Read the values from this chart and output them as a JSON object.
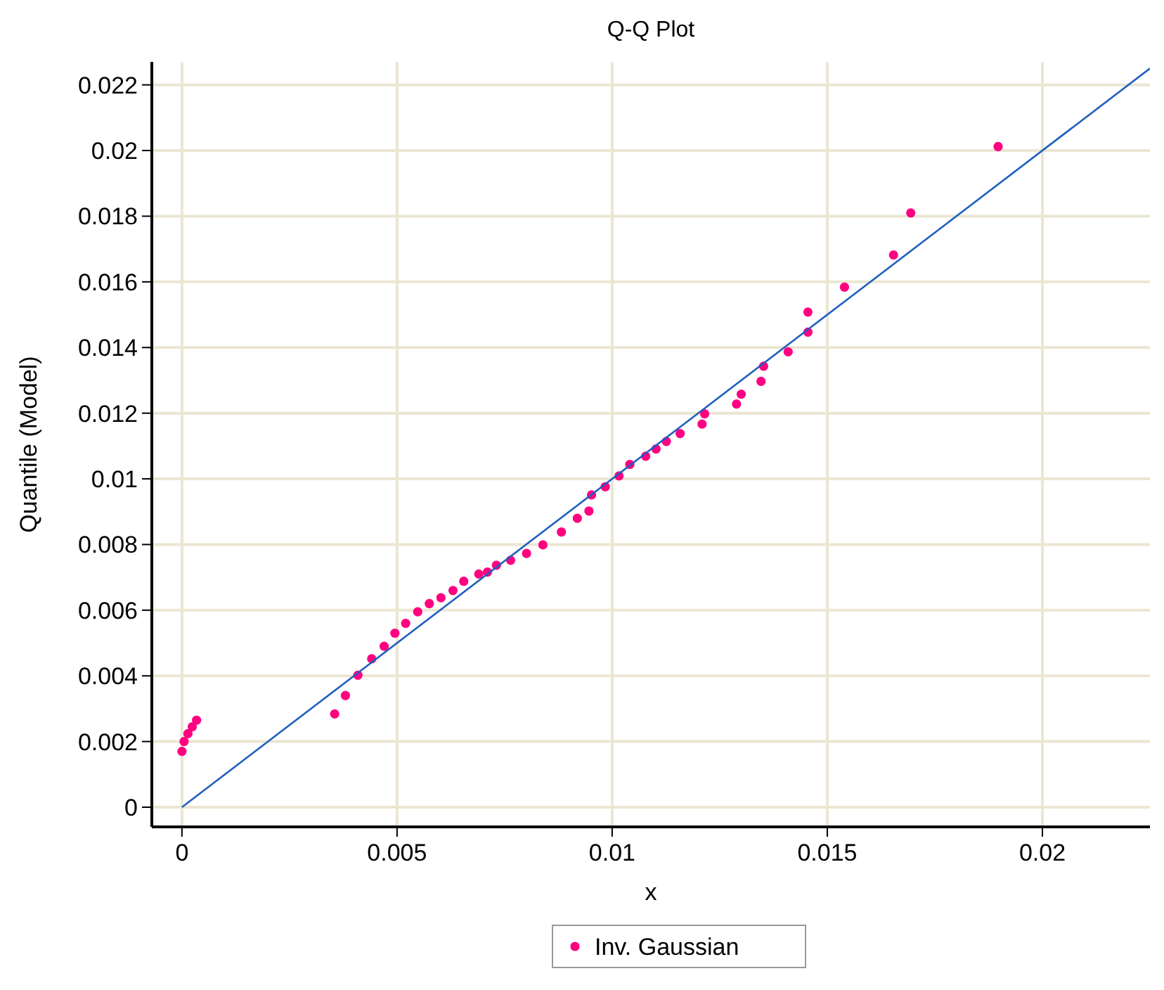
{
  "chart_data": {
    "type": "scatter",
    "title": "Q-Q Plot",
    "xlabel": "x",
    "ylabel": "Quantile (Model)",
    "xlim": [
      -0.0007,
      0.0225
    ],
    "ylim": [
      -0.0006,
      0.0227
    ],
    "xticks": [
      0,
      0.005,
      0.01,
      0.015,
      0.02
    ],
    "yticks": [
      0,
      0.002,
      0.004,
      0.006,
      0.008,
      0.01,
      0.012,
      0.014,
      0.016,
      0.018,
      0.02,
      0.022
    ],
    "grid": true,
    "legend": "bottom",
    "series": [
      {
        "name": "Inv. Gaussian",
        "color": "#ff0080",
        "marker": "circle",
        "x": [
          0,
          5e-05,
          0.00014,
          0.00024,
          0.00034,
          0.00355,
          0.0038,
          0.00409,
          0.00441,
          0.0047,
          0.00495,
          0.0052,
          0.00548,
          0.00575,
          0.00602,
          0.0063,
          0.00655,
          0.0069,
          0.0071,
          0.00731,
          0.00764,
          0.00801,
          0.00839,
          0.00882,
          0.00919,
          0.00946,
          0.00952,
          0.00984,
          0.01016,
          0.01041,
          0.01078,
          0.01102,
          0.01126,
          0.01158,
          0.01209,
          0.01215,
          0.01289,
          0.013,
          0.01346,
          0.01352,
          0.01409,
          0.01455,
          0.01455,
          0.0154,
          0.01654,
          0.01694,
          0.01897
        ],
        "values": [
          0.0017,
          0.002,
          0.00224,
          0.00245,
          0.00265,
          0.00284,
          0.0034,
          0.00402,
          0.00452,
          0.0049,
          0.0053,
          0.0056,
          0.00595,
          0.0062,
          0.00638,
          0.0066,
          0.00688,
          0.0071,
          0.00716,
          0.00737,
          0.00752,
          0.00773,
          0.00799,
          0.00838,
          0.0088,
          0.00902,
          0.00951,
          0.00976,
          0.01009,
          0.01044,
          0.01069,
          0.01091,
          0.01114,
          0.01138,
          0.01167,
          0.01198,
          0.01228,
          0.01258,
          0.01297,
          0.01343,
          0.01387,
          0.01447,
          0.01508,
          0.01584,
          0.01682,
          0.0181,
          0.02012
        ]
      },
      {
        "type": "line",
        "color": "#1f5fbf",
        "x": [
          0,
          0.0225
        ],
        "values": [
          0,
          0.0225
        ]
      }
    ]
  }
}
